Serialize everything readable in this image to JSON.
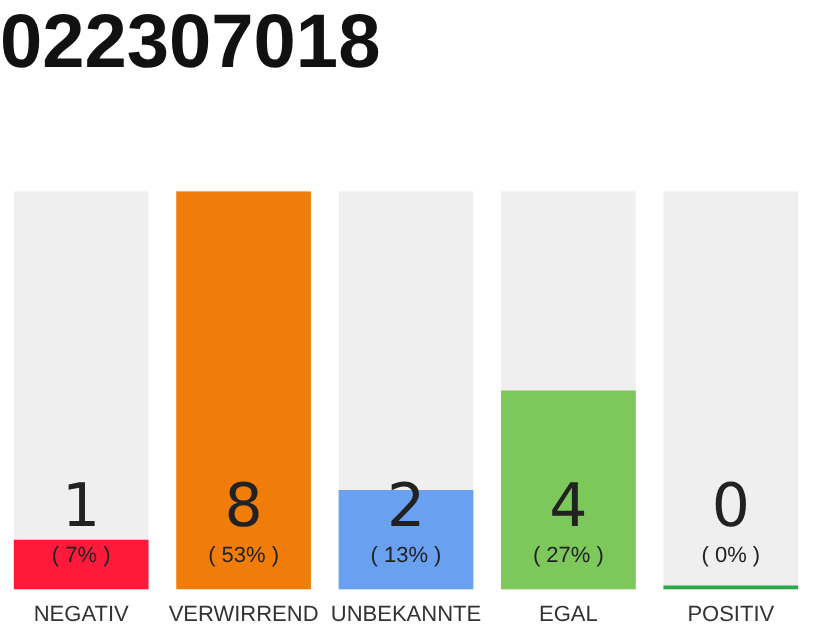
{
  "chart_data": {
    "type": "bar",
    "title": "022307018",
    "categories": [
      "NEGATIV",
      "VERWIRREND",
      "UNBEKANNTE",
      "EGAL",
      "POSITIV"
    ],
    "values": [
      1,
      8,
      2,
      4,
      0
    ],
    "colors": [
      "#ff1a3c",
      "#f07d0a",
      "#6aa0f0",
      "#7dc85a",
      "#2ca84a"
    ],
    "value_labels": [
      "1",
      "8",
      "2",
      "4",
      "0"
    ],
    "annotations": [
      "( 7% )",
      "( 53% )",
      "( 13% )",
      "( 27% )",
      "( 0% )"
    ],
    "grid": false,
    "legend": false
  }
}
